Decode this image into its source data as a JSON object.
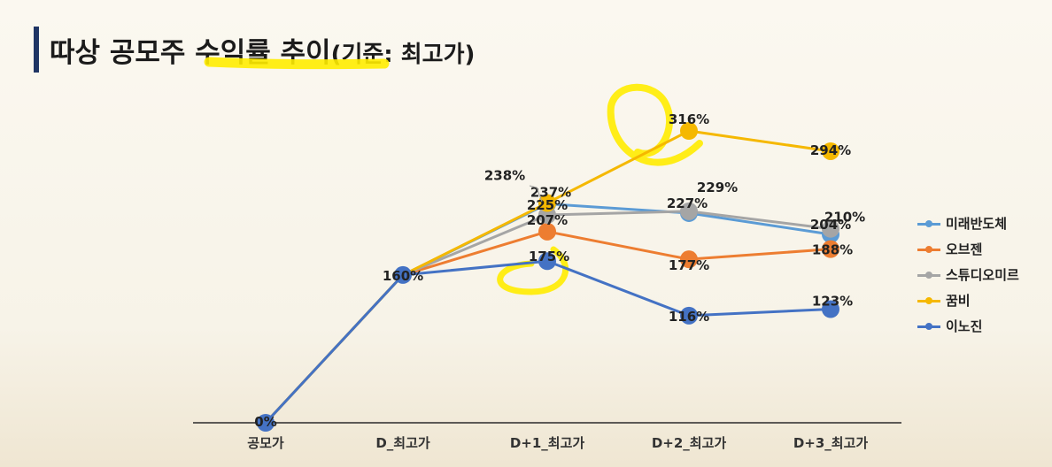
{
  "title": {
    "main": "따상 공모주 수익률 추이",
    "sub": "(기준: 최고가)"
  },
  "chart_data": {
    "type": "line",
    "categories": [
      "공모가",
      "D_최고가",
      "D+1_최고가",
      "D+2_최고가",
      "D+3_최고가"
    ],
    "ylim": [
      0,
      340
    ],
    "grid": false,
    "legend_position": "right",
    "series": [
      {
        "name": "미래반도체",
        "color": "#5b9bd5",
        "values": [
          0,
          160,
          237,
          227,
          204
        ],
        "labels": [
          "",
          "",
          "237%",
          "227%",
          "204%"
        ]
      },
      {
        "name": "오브젠",
        "color": "#ed7d31",
        "values": [
          0,
          160,
          207,
          177,
          188
        ],
        "labels": [
          "",
          "",
          "207%",
          "177%",
          "188%"
        ]
      },
      {
        "name": "스튜디오미르",
        "color": "#a5a5a5",
        "values": [
          0,
          160,
          225,
          229,
          210
        ],
        "labels": [
          "",
          "",
          "225%",
          "229%",
          "210%"
        ]
      },
      {
        "name": "꿈비",
        "color": "#f5b800",
        "values": [
          0,
          160,
          238,
          316,
          294
        ],
        "labels": [
          "",
          "",
          "238%",
          "316%",
          "294%"
        ]
      },
      {
        "name": "이노진",
        "color": "#4472c4",
        "values": [
          0,
          160,
          175,
          116,
          123
        ],
        "labels": [
          "0%",
          "160%",
          "175%",
          "116%",
          "123%"
        ]
      }
    ]
  }
}
